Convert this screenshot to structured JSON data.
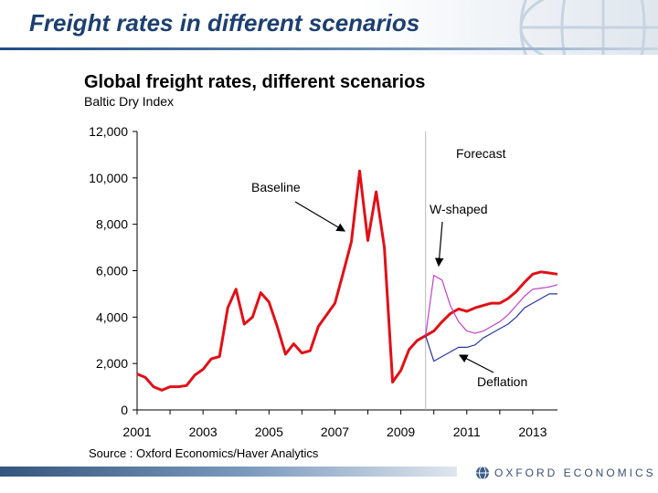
{
  "slide": {
    "title": "Freight rates in different scenarios",
    "source": "Source : Oxford Economics/Haver Analytics",
    "brand": "OXFORD ECONOMICS"
  },
  "colors": {
    "baseline": "#e01018",
    "w_shaped": "#c040c8",
    "deflation": "#2a36a0",
    "header_text": "#1d3f70",
    "footer_bar": "#34557f"
  },
  "icons": {
    "globe": "globe-grid-icon",
    "brand_logo": "globe-logo-icon"
  },
  "chart_data": {
    "type": "line",
    "title": "Global freight rates, different scenarios",
    "subtitle": "Baltic Dry Index",
    "xlabel": "",
    "ylabel": "",
    "xlim": [
      2001,
      2013.75
    ],
    "ylim": [
      0,
      12000
    ],
    "x_ticks": [
      "2001",
      "2003",
      "2005",
      "2007",
      "2009",
      "2011",
      "2013"
    ],
    "y_ticks": [
      "0",
      "2,000",
      "4,000",
      "6,000",
      "8,000",
      "10,000",
      "12,000"
    ],
    "grid": false,
    "forecast_start": 2009.75,
    "annotations": [
      "Forecast",
      "Baseline",
      "W-shaped",
      "Deflation"
    ],
    "series": [
      {
        "name": "Baseline",
        "color": "#e01018",
        "x": [
          2001.0,
          2001.25,
          2001.5,
          2001.75,
          2002.0,
          2002.25,
          2002.5,
          2002.75,
          2003.0,
          2003.25,
          2003.5,
          2003.75,
          2004.0,
          2004.25,
          2004.5,
          2004.75,
          2005.0,
          2005.25,
          2005.5,
          2005.75,
          2006.0,
          2006.25,
          2006.5,
          2006.75,
          2007.0,
          2007.25,
          2007.5,
          2007.75,
          2008.0,
          2008.25,
          2008.5,
          2008.75,
          2009.0,
          2009.25,
          2009.5,
          2009.75,
          2010.0,
          2010.25,
          2010.5,
          2010.75,
          2011.0,
          2011.25,
          2011.5,
          2011.75,
          2012.0,
          2012.25,
          2012.5,
          2012.75,
          2013.0,
          2013.25,
          2013.5,
          2013.75
        ],
        "y": [
          1550,
          1400,
          1000,
          850,
          1000,
          1000,
          1050,
          1500,
          1750,
          2200,
          2300,
          4400,
          5200,
          3700,
          4000,
          5050,
          4650,
          3600,
          2400,
          2850,
          2450,
          2550,
          3600,
          4100,
          4600,
          5900,
          7250,
          10300,
          7300,
          9400,
          7000,
          1200,
          1700,
          2600,
          3000,
          3200,
          3400,
          3800,
          4150,
          4350,
          4250,
          4400,
          4500,
          4600,
          4600,
          4800,
          5100,
          5500,
          5850,
          5950,
          5900,
          5850
        ]
      },
      {
        "name": "W-shaped",
        "color": "#c040c8",
        "x": [
          2009.75,
          2010.0,
          2010.25,
          2010.5,
          2010.75,
          2011.0,
          2011.25,
          2011.5,
          2011.75,
          2012.0,
          2012.25,
          2012.5,
          2012.75,
          2013.0,
          2013.25,
          2013.5,
          2013.75
        ],
        "y": [
          3200,
          5800,
          5600,
          4500,
          3800,
          3400,
          3300,
          3400,
          3600,
          3800,
          4100,
          4500,
          4900,
          5200,
          5250,
          5300,
          5400
        ]
      },
      {
        "name": "Deflation",
        "color": "#2a36a0",
        "x": [
          2009.75,
          2010.0,
          2010.25,
          2010.5,
          2010.75,
          2011.0,
          2011.25,
          2011.5,
          2011.75,
          2012.0,
          2012.25,
          2012.5,
          2012.75,
          2013.0,
          2013.25,
          2013.5,
          2013.75
        ],
        "y": [
          3200,
          2100,
          2300,
          2500,
          2700,
          2700,
          2800,
          3100,
          3300,
          3500,
          3700,
          4000,
          4400,
          4600,
          4800,
          5000,
          5000
        ]
      }
    ]
  }
}
